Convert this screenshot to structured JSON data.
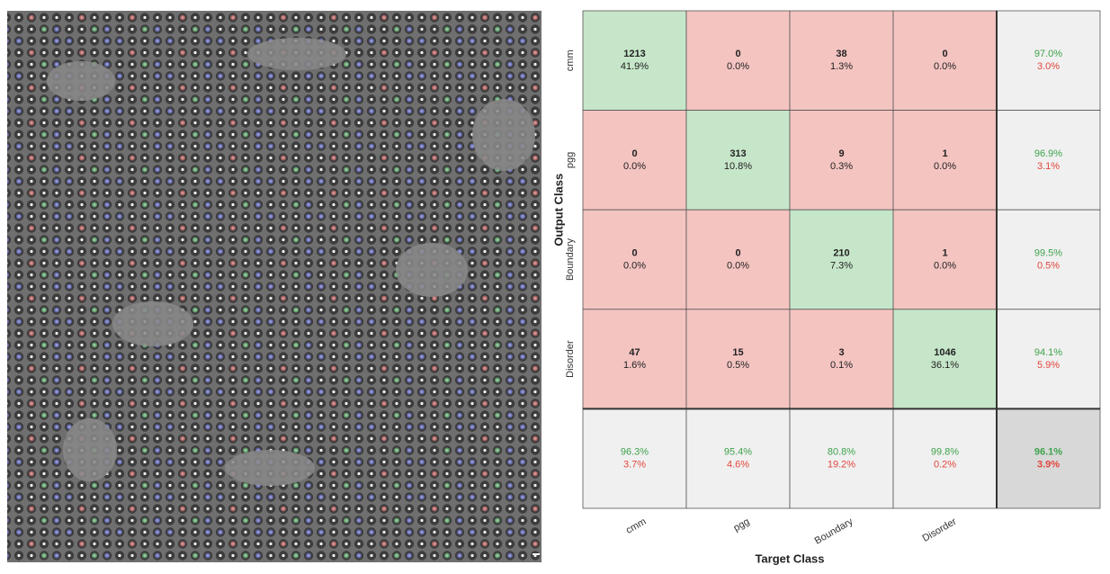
{
  "chart_data": {
    "type": "confusion_matrix",
    "x_label": "Target Class",
    "y_label": "Output Class",
    "categories": [
      "cmm",
      "pgg",
      "Boundary",
      "Disorder"
    ],
    "values": [
      [
        1213,
        0,
        38,
        0
      ],
      [
        0,
        313,
        9,
        1
      ],
      [
        0,
        0,
        210,
        1
      ],
      [
        47,
        15,
        3,
        1046
      ]
    ],
    "percent_labels": [
      [
        "41.9%",
        "0.0%",
        "1.3%",
        "0.0%"
      ],
      [
        "0.0%",
        "10.8%",
        "0.3%",
        "0.0%"
      ],
      [
        "0.0%",
        "0.0%",
        "7.3%",
        "0.0%"
      ],
      [
        "1.6%",
        "0.5%",
        "0.1%",
        "36.1%"
      ]
    ],
    "row_summary": [
      [
        "97.0%",
        "3.0%"
      ],
      [
        "96.9%",
        "3.1%"
      ],
      [
        "99.5%",
        "0.5%"
      ],
      [
        "94.1%",
        "5.9%"
      ]
    ],
    "column_summary": [
      [
        "96.3%",
        "3.7%"
      ],
      [
        "95.4%",
        "4.6%"
      ],
      [
        "80.8%",
        "19.2%"
      ],
      [
        "99.8%",
        "0.2%"
      ]
    ],
    "overall": [
      "96.1%",
      "3.9%"
    ],
    "colors": {
      "correct": "#c6e6c9",
      "wrong": "#f4c4c1",
      "summary": "#f0f0f0",
      "overall": "#d8d8d8",
      "good_text": "#3ea34c",
      "bad_text": "#e2463d"
    }
  }
}
